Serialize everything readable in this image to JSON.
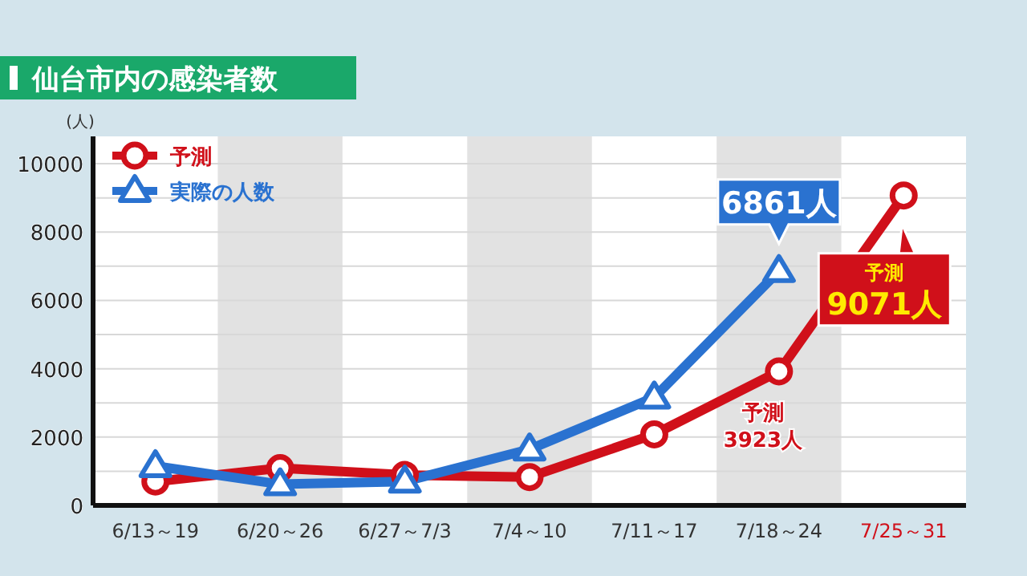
{
  "chart_data": {
    "type": "line",
    "title": "仙台市内の感染者数",
    "ylabel": "(人)",
    "categories": [
      "6/13～19",
      "6/20～26",
      "6/27～7/3",
      "7/4～10",
      "7/11～17",
      "7/18～24",
      "7/25～31"
    ],
    "series": [
      {
        "name": "予測",
        "color": "#d0101a",
        "marker": "circle",
        "values": [
          700,
          1090,
          890,
          830,
          2080,
          3923,
          9071
        ],
        "value_labels": [
          null,
          null,
          null,
          null,
          null,
          "予測\n3923人",
          "予測\n9071人"
        ]
      },
      {
        "name": "実際の人数",
        "color": "#2a72d0",
        "marker": "triangle",
        "values": [
          1150,
          620,
          700,
          1640,
          3160,
          6861,
          null
        ],
        "value_labels": [
          null,
          null,
          null,
          null,
          null,
          "6861人",
          null
        ]
      }
    ],
    "ylim": [
      0,
      10800
    ],
    "yticks": [
      0,
      {
        "value": 1000,
        "label": null
      },
      2000,
      {
        "value": 3000,
        "label": null
      },
      4000,
      {
        "value": 5000,
        "label": null
      },
      6000,
      {
        "value": 7000,
        "label": null
      },
      8000,
      {
        "value": 9000,
        "label": null
      },
      10000
    ],
    "grid": "y",
    "legend": "top left",
    "line_style": "solid",
    "bands": [
      {
        "axis": "x",
        "from": "6/20～26",
        "to": "6/20～26",
        "color": "#e2e2e2"
      },
      {
        "axis": "x",
        "from": "7/4～10",
        "to": "7/4～10",
        "color": "#e2e2e2"
      },
      {
        "axis": "x",
        "from": "7/18～24",
        "to": "7/18～24",
        "color": "#e2e2e2"
      }
    ]
  }
}
